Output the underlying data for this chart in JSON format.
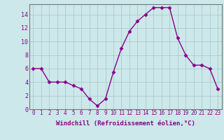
{
  "hours": [
    0,
    1,
    2,
    3,
    4,
    5,
    6,
    7,
    8,
    9,
    10,
    11,
    12,
    13,
    14,
    15,
    16,
    17,
    18,
    19,
    20,
    21,
    22,
    23
  ],
  "windchill": [
    6,
    6,
    4,
    4,
    4,
    3.5,
    3,
    1.5,
    0.5,
    1.5,
    5.5,
    9,
    11.5,
    13,
    14,
    15,
    15,
    15,
    10.5,
    8,
    6.5,
    6.5,
    6,
    3
  ],
  "line_color": "#880088",
  "marker": "D",
  "marker_size": 2.5,
  "background_color": "#cce8ea",
  "grid_color": "#aacccc",
  "xlabel": "Windchill (Refroidissement éolien,°C)",
  "ylabel": "",
  "xlim_min": -0.5,
  "xlim_max": 23.5,
  "ylim_min": 0,
  "ylim_max": 15.5,
  "yticks": [
    0,
    2,
    4,
    6,
    8,
    10,
    12,
    14
  ],
  "tick_color": "#880088",
  "label_color": "#880088",
  "font_family": "monospace",
  "xlabel_fontsize": 6.5,
  "tick_fontsize_x": 5.5,
  "tick_fontsize_y": 6.0,
  "spine_color": "#777777"
}
